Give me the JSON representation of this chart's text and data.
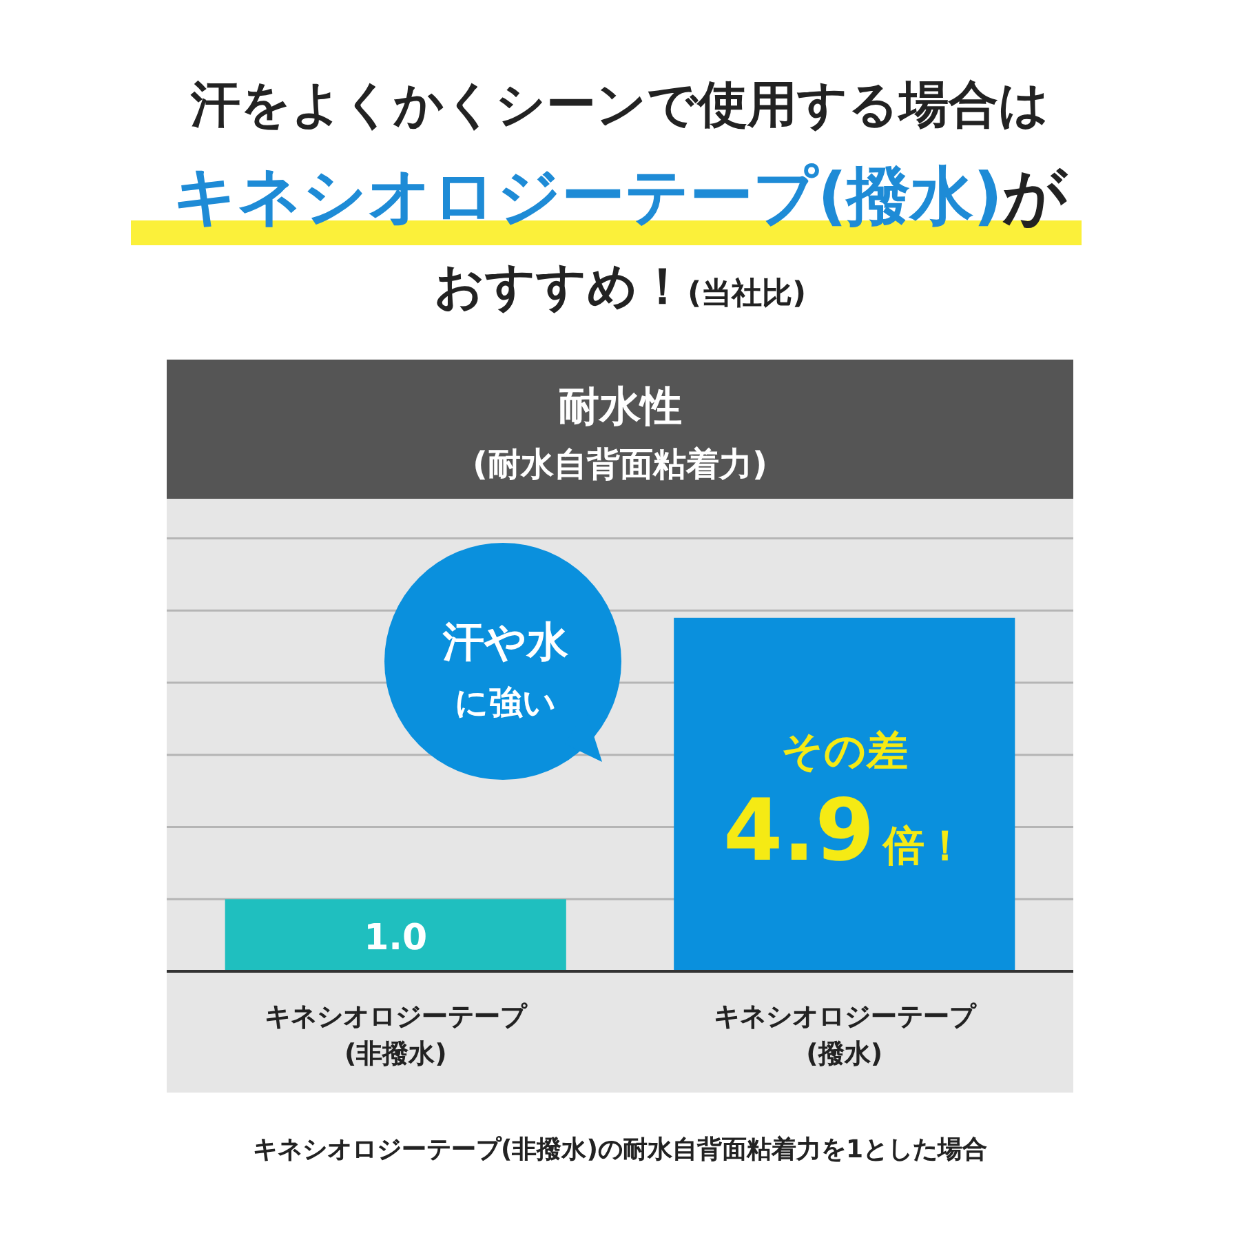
{
  "chart_data": {
    "type": "bar",
    "title": "汗をよくかくシーンで使用する場合はキネシオロジーテープ(撥水)がおすすめ！(当社比)",
    "subtitle": "耐水性\n(耐水自背面粘着力)",
    "categories": [
      "キネシオロジーテープ\n(非撥水)",
      "キネシオロジーテープ\n(撥水)"
    ],
    "values": [
      1.0,
      4.9
    ],
    "colors": [
      "#1fbfbf",
      "#0a90dd"
    ],
    "value_labels": [
      "1.0",
      "4.9倍！"
    ],
    "ylim": [
      0,
      6.55
    ],
    "yticks": [
      {
        "value": 1,
        "label": null
      },
      {
        "value": 2,
        "label": null
      },
      {
        "value": 3,
        "label": null
      },
      {
        "value": 4,
        "label": null
      },
      {
        "value": 5,
        "label": null
      },
      {
        "value": 6,
        "label": null
      }
    ],
    "grid": "y",
    "tick_labels": "x",
    "legend": false,
    "annotations": [
      "その差",
      "汗や水に強い",
      "キネシオロジーテープ(非撥水)の耐水自背面粘着力を1とした場合"
    ]
  }
}
